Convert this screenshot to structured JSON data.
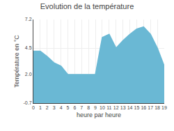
{
  "chart_data": {
    "type": "area",
    "title": "Evolution de la température",
    "xlabel": "heure par heure",
    "ylabel": "Température en °C",
    "x": [
      0,
      1,
      2,
      3,
      4,
      5,
      6,
      7,
      8,
      9,
      10,
      11,
      12,
      13,
      14,
      15,
      16,
      17,
      18,
      19
    ],
    "values": [
      4.2,
      4.2,
      3.7,
      3.1,
      2.8,
      2.0,
      2.0,
      2.0,
      2.0,
      2.0,
      5.5,
      5.8,
      4.5,
      5.2,
      5.8,
      6.3,
      6.5,
      5.8,
      4.5,
      2.8
    ],
    "color": "#6ab8d4",
    "xlim": [
      0,
      19
    ],
    "xticks": [
      0,
      1,
      2,
      3,
      4,
      5,
      6,
      7,
      8,
      9,
      10,
      11,
      12,
      13,
      14,
      15,
      16,
      17,
      18,
      19
    ],
    "ylim": [
      -0.7,
      7.2
    ],
    "yticks": [
      -0.7,
      {
        "value": 2.0,
        "label": "2.0"
      },
      4.5,
      7.2
    ],
    "grid": true
  }
}
